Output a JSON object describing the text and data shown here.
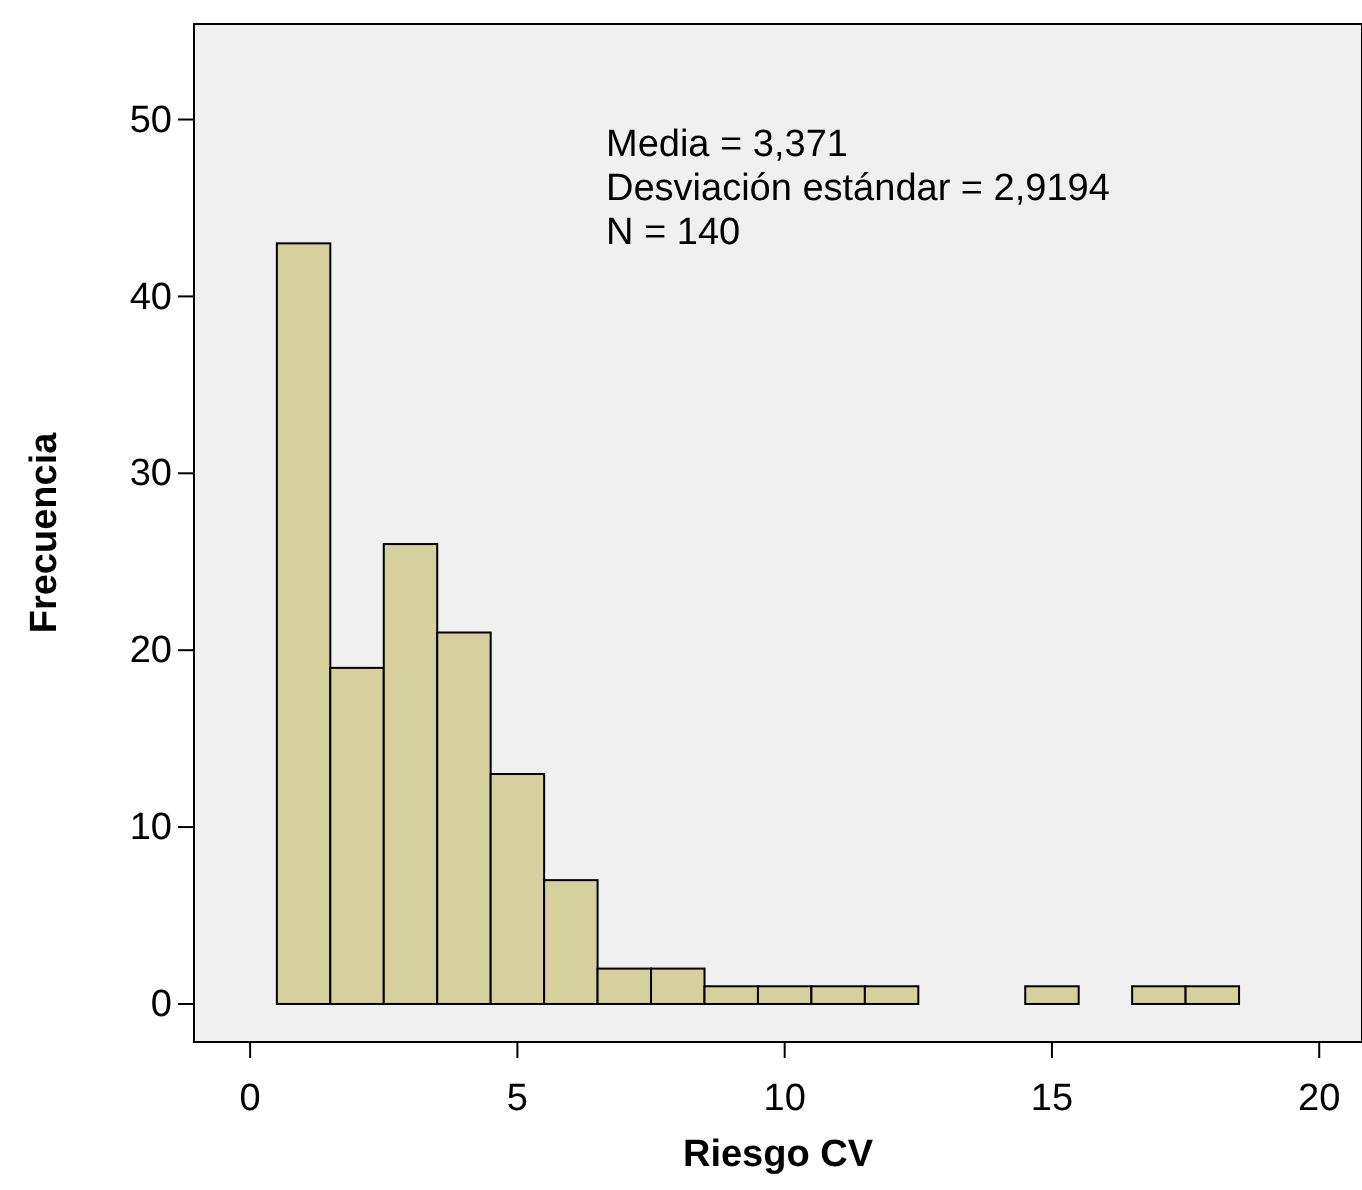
{
  "chart_data": {
    "type": "histogram",
    "xlabel": "Riesgo CV",
    "ylabel": "Frecuencia",
    "bins": [
      0.5,
      1.5,
      2.5,
      3.5,
      4.5,
      5.5,
      6.5,
      7.5,
      8.5,
      9.5,
      10.5,
      11.5,
      12.5,
      13.5,
      14.5,
      15.5,
      16.5,
      17.5,
      18.5
    ],
    "values": [
      43,
      19,
      26,
      21,
      13,
      7,
      2,
      2,
      1,
      1,
      1,
      1,
      0,
      0,
      1,
      0,
      1,
      1
    ],
    "color": "#d6d09e",
    "xlim": [
      -1.05,
      20.8
    ],
    "xticks": [
      0,
      5,
      10,
      15,
      20
    ],
    "ylim": [
      -2.15,
      55.4
    ],
    "yticks": [
      0,
      10,
      20,
      30,
      40,
      50
    ],
    "grid": false,
    "annotations": [
      "Media = 3,371",
      "Desviación estándar = 2,9194",
      "N = 140"
    ]
  }
}
